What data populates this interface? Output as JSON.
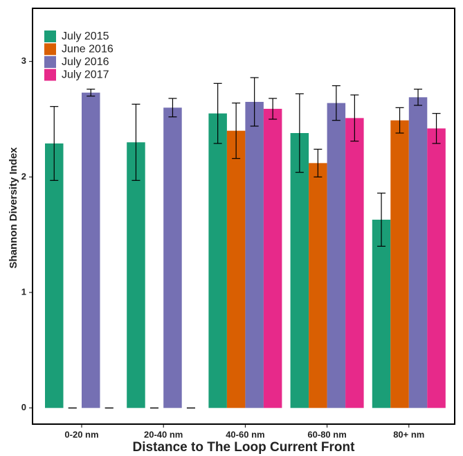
{
  "chart_data": {
    "type": "bar",
    "x_label": "Distance to The Loop Current Front",
    "y_label": "Shannon Diversity Index",
    "categories": [
      "0-20 nm",
      "20-40 nm",
      "40-60 nm",
      "60-80 nm",
      "80+ nm"
    ],
    "series": [
      {
        "name": "July 2015",
        "color": "#1b9e77",
        "values": [
          2.29,
          2.3,
          2.55,
          2.38,
          1.63
        ],
        "errors": [
          0.32,
          0.33,
          0.26,
          0.34,
          0.23
        ]
      },
      {
        "name": "June 2016",
        "color": "#d95f02",
        "values": [
          0,
          0,
          2.4,
          2.12,
          2.49
        ],
        "errors": [
          0,
          0,
          0.24,
          0.12,
          0.11
        ]
      },
      {
        "name": "July 2016",
        "color": "#7570b3",
        "values": [
          2.73,
          2.6,
          2.65,
          2.64,
          2.69
        ],
        "errors": [
          0.03,
          0.08,
          0.21,
          0.15,
          0.07
        ]
      },
      {
        "name": "July 2017",
        "color": "#e7298a",
        "values": [
          0,
          0,
          2.59,
          2.51,
          2.42
        ],
        "errors": [
          0,
          0,
          0.09,
          0.2,
          0.13
        ]
      }
    ],
    "ylim": [
      -0.14,
      3.46
    ],
    "yticks": [
      0,
      1,
      2,
      3
    ],
    "grid": false,
    "legend": "top-left"
  }
}
